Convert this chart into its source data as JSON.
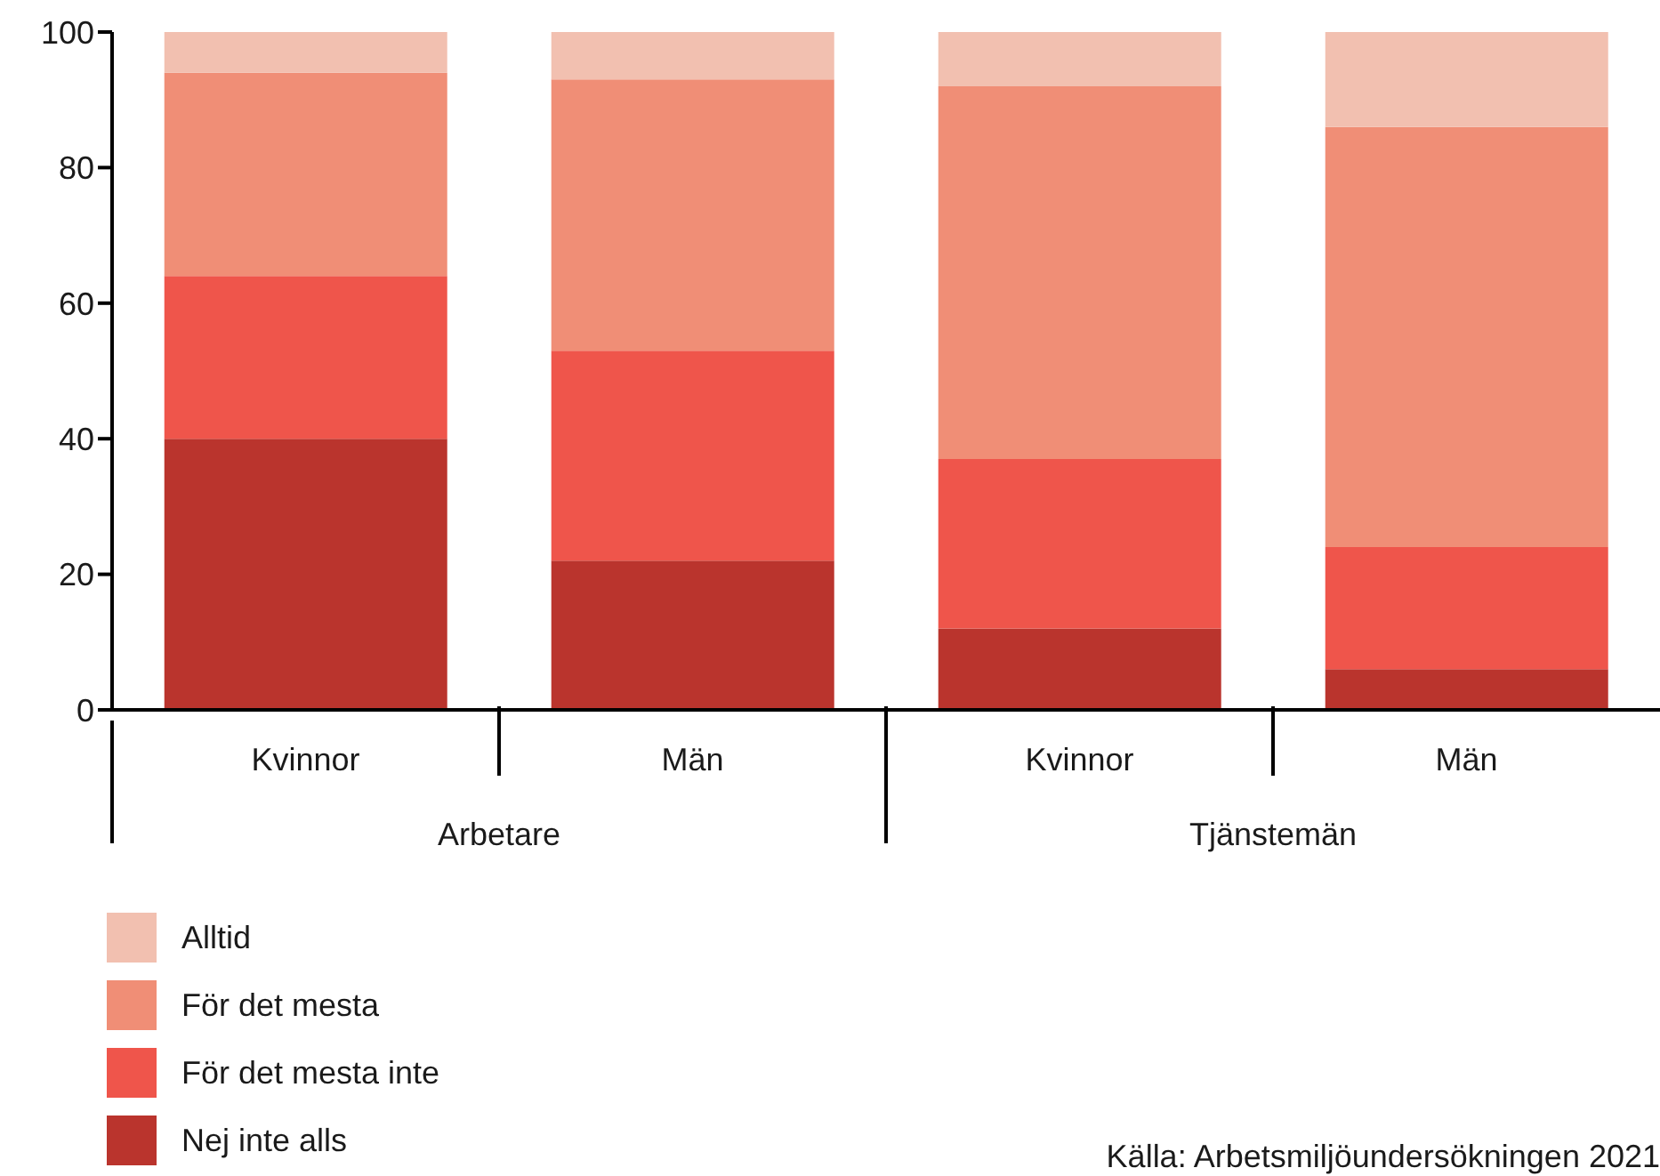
{
  "chart_data": {
    "type": "bar",
    "stacked": true,
    "categories": [
      "Kvinnor",
      "Män",
      "Kvinnor",
      "Män"
    ],
    "series": [
      {
        "name": "Nej inte alls",
        "color": "#ba342d",
        "values": [
          40,
          22,
          12,
          6
        ]
      },
      {
        "name": "För det mesta inte",
        "color": "#ef554b",
        "values": [
          24,
          31,
          25,
          18
        ]
      },
      {
        "name": "För det mesta",
        "color": "#f08e76",
        "values": [
          30,
          40,
          55,
          62
        ]
      },
      {
        "name": "Alltid",
        "color": "#f2c0b0",
        "values": [
          6,
          7,
          8,
          14
        ]
      }
    ],
    "ylim": [
      0,
      100
    ],
    "yticks": [
      0,
      20,
      40,
      60,
      80,
      100
    ],
    "legend": "bottom left",
    "annotations": [
      "Arbetare",
      "Tjänstemän",
      "Källa: Arbetsmiljöundersökningen 2021"
    ]
  }
}
